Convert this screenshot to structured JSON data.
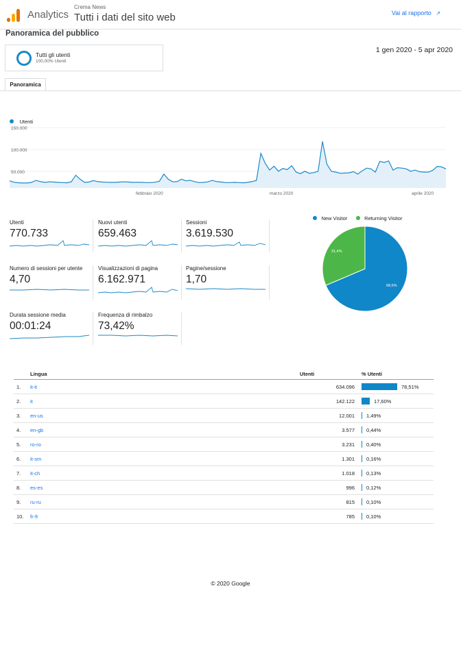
{
  "header": {
    "app_name": "Analytics",
    "site_name": "Crema News",
    "property_name": "Tutti i dati del sito web",
    "report_link": "Vai al rapporto",
    "colors": {
      "logo_dark": "#e37400",
      "logo_light": "#f9ab00"
    }
  },
  "page_title": "Panoramica del pubblico",
  "segment": {
    "name": "Tutti gli utenti",
    "detail": "100,00% Utenti"
  },
  "date_range": "1 gen 2020 - 5 apr 2020",
  "tabs": [
    "Panoramica"
  ],
  "chart_data": [
    {
      "type": "area",
      "series": [
        {
          "name": "Utenti",
          "values": [
            16000,
            12500,
            11000,
            10500,
            10500,
            12000,
            17000,
            14000,
            12000,
            13500,
            13000,
            12000,
            11500,
            11000,
            13500,
            30000,
            20000,
            12000,
            13000,
            16500,
            14000,
            13000,
            12500,
            12000,
            12000,
            13000,
            13500,
            13000,
            12000,
            12500,
            12000,
            11500,
            11500,
            12500,
            15000,
            33000,
            20000,
            13500,
            14000,
            20000,
            16000,
            17000,
            14000,
            11500,
            12000,
            13500,
            17000,
            14000,
            13000,
            11500,
            11500,
            12000,
            11500,
            11000,
            12000,
            14000,
            17000,
            85000,
            60000,
            43000,
            53000,
            40000,
            47000,
            44000,
            54000,
            38000,
            34000,
            40000,
            35000,
            36500,
            40000,
            115000,
            58000,
            40000,
            38000,
            35000,
            35500,
            36000,
            39000,
            33000,
            41000,
            48000,
            46000,
            38000,
            65000,
            62000,
            66000,
            43000,
            49000,
            48000,
            46000,
            40000,
            43000,
            39000,
            38000,
            38000,
            42000,
            52000,
            51000,
            46000
          ]
        }
      ],
      "x_ticks": [
        "febbraio 2020",
        "marzo 2020",
        "aprile 2020"
      ],
      "y_ticks": [
        "150.000",
        "100.000",
        "50.000"
      ],
      "ylim": [
        0,
        160000
      ],
      "color": "#1a88c9"
    },
    {
      "type": "pie",
      "legend_position": "top",
      "slices": [
        {
          "name": "New Visitor",
          "value": 68.6,
          "label": "68,6%",
          "color": "#0f87c8"
        },
        {
          "name": "Returning Visitor",
          "value": 31.4,
          "label": "31,4%",
          "color": "#4cb748"
        }
      ]
    }
  ],
  "metrics": [
    {
      "label": "Utenti",
      "value": "770.733"
    },
    {
      "label": "Nuovi utenti",
      "value": "659.463"
    },
    {
      "label": "Sessioni",
      "value": "3.619.530"
    },
    {
      "label": "Numero di sessioni per utente",
      "value": "4,70"
    },
    {
      "label": "Visualizzazioni di pagina",
      "value": "6.162.971"
    },
    {
      "label": "Pagine/sessione",
      "value": "1,70"
    },
    {
      "label": "Durata sessione media",
      "value": "00:01:24"
    },
    {
      "label": "Frequenza di rimbalzo",
      "value": "73,42%"
    }
  ],
  "table": {
    "headers": {
      "language": "Lingua",
      "users": "Utenti",
      "pct": "% Utenti"
    },
    "rows": [
      {
        "n": "1.",
        "lang": "it-it",
        "users": "634.096",
        "pct": "78,51%",
        "share": 0.7851
      },
      {
        "n": "2.",
        "lang": "it",
        "users": "142.122",
        "pct": "17,60%",
        "share": 0.176
      },
      {
        "n": "3.",
        "lang": "en-us",
        "users": "12.001",
        "pct": "1,49%",
        "share": 0.0149
      },
      {
        "n": "4.",
        "lang": "en-gb",
        "users": "3.577",
        "pct": "0,44%",
        "share": 0.0044
      },
      {
        "n": "5.",
        "lang": "ro-ro",
        "users": "3.231",
        "pct": "0,40%",
        "share": 0.004
      },
      {
        "n": "6.",
        "lang": "it-sm",
        "users": "1.301",
        "pct": "0,16%",
        "share": 0.0016
      },
      {
        "n": "7.",
        "lang": "it-ch",
        "users": "1.018",
        "pct": "0,13%",
        "share": 0.0013
      },
      {
        "n": "8.",
        "lang": "es-es",
        "users": "996",
        "pct": "0,12%",
        "share": 0.0012
      },
      {
        "n": "9.",
        "lang": "ru-ru",
        "users": "815",
        "pct": "0,10%",
        "share": 0.001
      },
      {
        "n": "10.",
        "lang": "fr-fr",
        "users": "785",
        "pct": "0,10%",
        "share": 0.001
      }
    ]
  },
  "footer": "© 2020 Google"
}
